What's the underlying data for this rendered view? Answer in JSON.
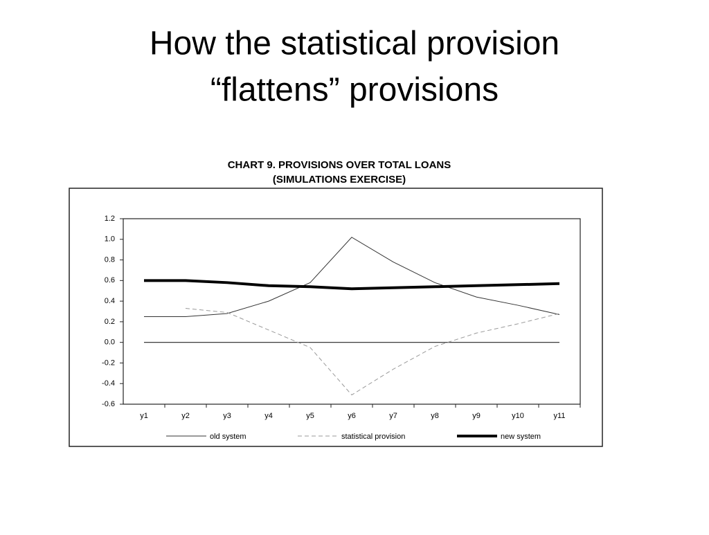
{
  "slide_title": [
    "How the statistical provision",
    "“flattens” provisions"
  ],
  "chart_data": {
    "type": "line",
    "title": "CHART 9. PROVISIONS OVER TOTAL LOANS",
    "subtitle": "(SIMULATIONS EXERCISE)",
    "categories": [
      "y1",
      "y2",
      "y3",
      "y4",
      "y5",
      "y6",
      "y7",
      "y8",
      "y9",
      "y10",
      "y11"
    ],
    "series": [
      {
        "name": "old system",
        "color": "#333333",
        "width": 1,
        "dash": false,
        "values": [
          0.25,
          0.25,
          0.28,
          0.4,
          0.58,
          1.02,
          0.78,
          0.58,
          0.44,
          0.36,
          0.27
        ]
      },
      {
        "name": "statistical provision",
        "color": "#999999",
        "width": 1,
        "dash": true,
        "values": [
          null,
          0.33,
          0.29,
          0.12,
          -0.05,
          -0.51,
          -0.26,
          -0.04,
          0.09,
          0.18,
          0.28
        ]
      },
      {
        "name": "new system",
        "color": "#000000",
        "width": 4,
        "dash": false,
        "values": [
          0.6,
          0.6,
          0.58,
          0.55,
          0.54,
          0.52,
          0.53,
          0.54,
          0.55,
          0.56,
          0.57
        ]
      }
    ],
    "ylim": [
      -0.6,
      1.2
    ],
    "yticks": [
      1.2,
      {
        "value": 1.0,
        "label": "1.0"
      },
      0.8,
      0.6,
      0.4,
      0.2,
      {
        "value": 0,
        "label": "0.0"
      },
      -0.2,
      -0.4,
      -0.6
    ],
    "grid": false
  }
}
